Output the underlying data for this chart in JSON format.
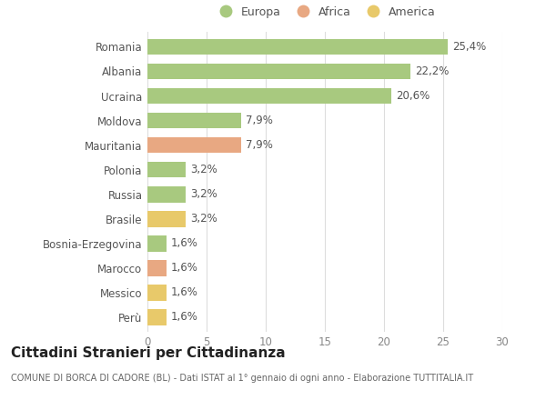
{
  "countries": [
    "Romania",
    "Albania",
    "Ucraina",
    "Moldova",
    "Mauritania",
    "Polonia",
    "Russia",
    "Brasile",
    "Bosnia-Erzegovina",
    "Marocco",
    "Messico",
    "Perù"
  ],
  "values": [
    25.4,
    22.2,
    20.6,
    7.9,
    7.9,
    3.2,
    3.2,
    3.2,
    1.6,
    1.6,
    1.6,
    1.6
  ],
  "labels": [
    "25,4%",
    "22,2%",
    "20,6%",
    "7,9%",
    "7,9%",
    "3,2%",
    "3,2%",
    "3,2%",
    "1,6%",
    "1,6%",
    "1,6%",
    "1,6%"
  ],
  "continents": [
    "Europa",
    "Europa",
    "Europa",
    "Europa",
    "Africa",
    "Europa",
    "Europa",
    "America",
    "Europa",
    "Africa",
    "America",
    "America"
  ],
  "colors": {
    "Europa": "#a8c97f",
    "Africa": "#e8a882",
    "America": "#e8c96a"
  },
  "legend_order": [
    "Europa",
    "Africa",
    "America"
  ],
  "xlim": [
    0,
    30
  ],
  "xticks": [
    0,
    5,
    10,
    15,
    20,
    25,
    30
  ],
  "title": "Cittadini Stranieri per Cittadinanza",
  "subtitle": "COMUNE DI BORCA DI CADORE (BL) - Dati ISTAT al 1° gennaio di ogni anno - Elaborazione TUTTITALIA.IT",
  "background_color": "#ffffff",
  "grid_color": "#dddddd",
  "bar_height": 0.65,
  "label_fontsize": 8.5,
  "tick_fontsize": 8.5,
  "title_fontsize": 11,
  "subtitle_fontsize": 7
}
